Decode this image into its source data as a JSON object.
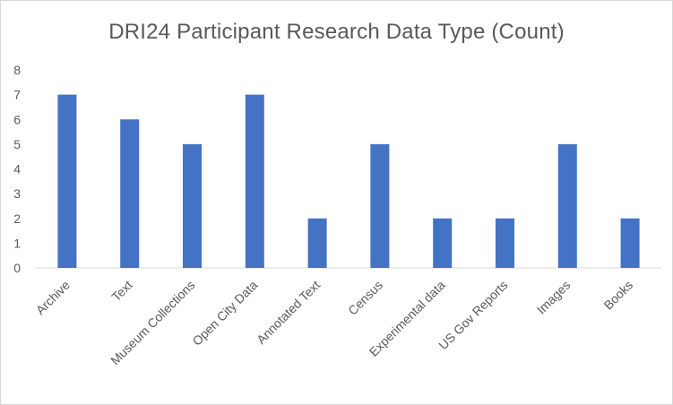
{
  "chart_data": {
    "type": "bar",
    "title": "DRI24 Participant Research Data Type (Count)",
    "categories": [
      "Archive",
      "Text",
      "Museum Collections",
      "Open City Data",
      "Annotated Text",
      "Census",
      "Experimental data",
      "US Gov Reports",
      "Images",
      "Books"
    ],
    "values": [
      7,
      6,
      5,
      7,
      2,
      5,
      2,
      2,
      5,
      2
    ],
    "ylim": [
      0,
      8
    ],
    "yticks": [
      0,
      1,
      2,
      3,
      4,
      5,
      6,
      7,
      8
    ],
    "xlabel": "",
    "ylabel": "",
    "grid": false,
    "legend": "none",
    "bar_color": "#4472C4",
    "axis_color": "#d9d9d9",
    "text_color": "#595959"
  }
}
